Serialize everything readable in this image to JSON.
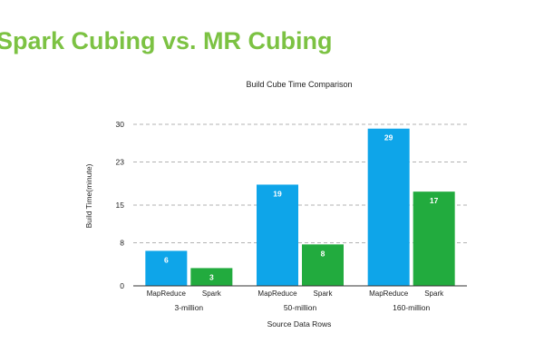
{
  "slide": {
    "title": "Spark Cubing vs. MR Cubing"
  },
  "chart_data": {
    "type": "bar",
    "title": "Build Cube Time Comparison",
    "xlabel": "Source Data Rows",
    "ylabel": "Build Time(minute)",
    "ylim": [
      0,
      30
    ],
    "yticks": [
      0,
      8,
      15,
      23,
      30
    ],
    "grid": true,
    "groups": [
      {
        "label": "3-million",
        "bars": [
          {
            "label": "MapReduce",
            "value": 6.5,
            "data_label": "6",
            "color": "#0ea5e9"
          },
          {
            "label": "Spark",
            "value": 3.3,
            "data_label": "3",
            "color": "#22ab3e"
          }
        ]
      },
      {
        "label": "50-million",
        "bars": [
          {
            "label": "MapReduce",
            "value": 18.8,
            "data_label": "19",
            "color": "#0ea5e9"
          },
          {
            "label": "Spark",
            "value": 7.7,
            "data_label": "8",
            "color": "#22ab3e"
          }
        ]
      },
      {
        "label": "160-million",
        "bars": [
          {
            "label": "MapReduce",
            "value": 29.2,
            "data_label": "29",
            "color": "#0ea5e9"
          },
          {
            "label": "Spark",
            "value": 17.5,
            "data_label": "17",
            "color": "#22ab3e"
          }
        ]
      }
    ]
  }
}
